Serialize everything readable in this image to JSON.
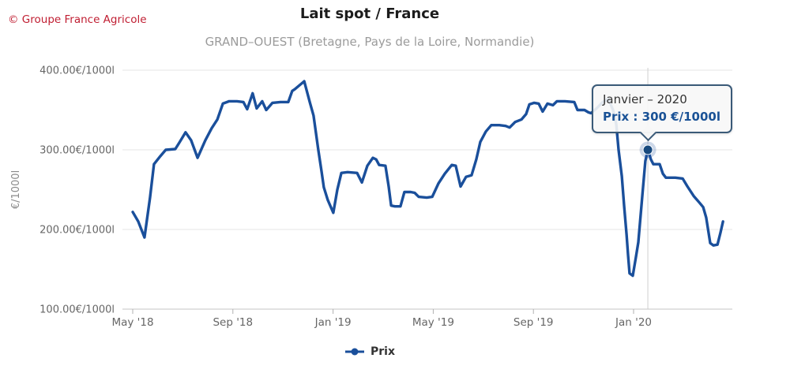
{
  "credit": "© Groupe France Agricole",
  "title": "Lait spot / France",
  "subtitle": "GRAND–OUEST (Bretagne, Pays de la Loire, Normandie)",
  "tooltip": {
    "title": "Janvier – 2020",
    "text": "Prix : 300 €/1000l"
  },
  "legend": {
    "items": [
      {
        "label": "Prix",
        "color": "#1a4f9b"
      }
    ]
  },
  "colors": {
    "series": "#1a4f9b",
    "marker_fill": "#17497e",
    "grid": "#e6e6e6",
    "axis_line": "#c6c6c6",
    "tick": "#b0b0b0",
    "axis_text": "#666666",
    "axis_title_text": "#8a8a8a",
    "crosshair": "#cfcfcf",
    "tooltip_border": "#3a5a78",
    "credit_red": "#c01e32"
  },
  "chart_data": {
    "type": "line",
    "title": "Lait spot / France",
    "subtitle": "GRAND–OUEST (Bretagne, Pays de la Loire, Normandie)",
    "ylabel": "€/1000l",
    "xlabel": "",
    "ylim": [
      100,
      400
    ],
    "x_unit": "months since May 2018",
    "grid": "horizontal-only",
    "legend_position": "bottom-center",
    "y_ticks": [
      {
        "value": 100,
        "label": "100.00€/1000l"
      },
      {
        "value": 200,
        "label": "200.00€/1000l"
      },
      {
        "value": 300,
        "label": "300.00€/1000l"
      },
      {
        "value": 400,
        "label": "400.00€/1000l"
      }
    ],
    "x_ticks": [
      {
        "t": 0,
        "label": "May '18"
      },
      {
        "t": 4,
        "label": "Sep '18"
      },
      {
        "t": 8,
        "label": "Jan '19"
      },
      {
        "t": 12,
        "label": "May '19"
      },
      {
        "t": 16,
        "label": "Sep '19"
      },
      {
        "t": 20,
        "label": "Jan '20"
      }
    ],
    "highlight": {
      "t": 20.57,
      "value": 300,
      "date_label": "Janvier – 2020",
      "value_label": "300 €/1000l"
    },
    "series": [
      {
        "name": "Prix",
        "color": "#1a4f9b",
        "points": [
          [
            0,
            222
          ],
          [
            0.22,
            210
          ],
          [
            0.47,
            190
          ],
          [
            0.69,
            240
          ],
          [
            0.85,
            282
          ],
          [
            1.1,
            292
          ],
          [
            1.32,
            300
          ],
          [
            1.7,
            301
          ],
          [
            1.86,
            309
          ],
          [
            2.11,
            322
          ],
          [
            2.33,
            312
          ],
          [
            2.59,
            290
          ],
          [
            2.9,
            312
          ],
          [
            3.15,
            327
          ],
          [
            3.38,
            338
          ],
          [
            3.6,
            358
          ],
          [
            3.85,
            361
          ],
          [
            4.16,
            361
          ],
          [
            4.42,
            360
          ],
          [
            4.57,
            351
          ],
          [
            4.79,
            371
          ],
          [
            4.95,
            352
          ],
          [
            5.17,
            361
          ],
          [
            5.33,
            350
          ],
          [
            5.58,
            359
          ],
          [
            5.9,
            360
          ],
          [
            6.21,
            360
          ],
          [
            6.37,
            374
          ],
          [
            6.47,
            376
          ],
          [
            6.85,
            386
          ],
          [
            7.07,
            360
          ],
          [
            7.22,
            343
          ],
          [
            7.41,
            300
          ],
          [
            7.54,
            273
          ],
          [
            7.63,
            253
          ],
          [
            7.79,
            237
          ],
          [
            8.01,
            221
          ],
          [
            8.17,
            250
          ],
          [
            8.33,
            271
          ],
          [
            8.58,
            272
          ],
          [
            8.96,
            271
          ],
          [
            9.15,
            259
          ],
          [
            9.37,
            280
          ],
          [
            9.59,
            290
          ],
          [
            9.72,
            288
          ],
          [
            9.84,
            281
          ],
          [
            10.09,
            280
          ],
          [
            10.22,
            254
          ],
          [
            10.32,
            230
          ],
          [
            10.47,
            229
          ],
          [
            10.69,
            229
          ],
          [
            10.85,
            247
          ],
          [
            11.1,
            247
          ],
          [
            11.26,
            246
          ],
          [
            11.42,
            241
          ],
          [
            11.74,
            240
          ],
          [
            11.96,
            241
          ],
          [
            12.21,
            258
          ],
          [
            12.46,
            270
          ],
          [
            12.74,
            281
          ],
          [
            12.9,
            280
          ],
          [
            13.09,
            254
          ],
          [
            13.31,
            266
          ],
          [
            13.53,
            268
          ],
          [
            13.72,
            288
          ],
          [
            13.88,
            310
          ],
          [
            14.1,
            323
          ],
          [
            14.32,
            331
          ],
          [
            14.64,
            331
          ],
          [
            14.89,
            330
          ],
          [
            15.05,
            328
          ],
          [
            15.27,
            335
          ],
          [
            15.52,
            338
          ],
          [
            15.71,
            345
          ],
          [
            15.84,
            357
          ],
          [
            16.03,
            359
          ],
          [
            16.21,
            358
          ],
          [
            16.37,
            348
          ],
          [
            16.56,
            358
          ],
          [
            16.78,
            356
          ],
          [
            16.94,
            361
          ],
          [
            17.26,
            361
          ],
          [
            17.63,
            360
          ],
          [
            17.76,
            350
          ],
          [
            18.04,
            350
          ],
          [
            18.2,
            347
          ],
          [
            18.3,
            346
          ],
          [
            18.52,
            352
          ],
          [
            18.77,
            360
          ],
          [
            18.99,
            364
          ],
          [
            19.18,
            350
          ],
          [
            19.31,
            332
          ],
          [
            19.4,
            300
          ],
          [
            19.53,
            267
          ],
          [
            19.62,
            230
          ],
          [
            19.72,
            194
          ],
          [
            19.78,
            168
          ],
          [
            19.84,
            145
          ],
          [
            19.97,
            142
          ],
          [
            20.09,
            165
          ],
          [
            20.19,
            184
          ],
          [
            20.35,
            243
          ],
          [
            20.47,
            286
          ],
          [
            20.57,
            300
          ],
          [
            20.69,
            288
          ],
          [
            20.79,
            282
          ],
          [
            21.04,
            282
          ],
          [
            21.17,
            270
          ],
          [
            21.29,
            265
          ],
          [
            21.67,
            265
          ],
          [
            21.96,
            264
          ],
          [
            22.15,
            254
          ],
          [
            22.4,
            242
          ],
          [
            22.62,
            234
          ],
          [
            22.78,
            228
          ],
          [
            22.9,
            215
          ],
          [
            23,
            195
          ],
          [
            23.06,
            183
          ],
          [
            23.19,
            180
          ],
          [
            23.35,
            181
          ],
          [
            23.47,
            196
          ],
          [
            23.57,
            210
          ]
        ]
      }
    ]
  }
}
